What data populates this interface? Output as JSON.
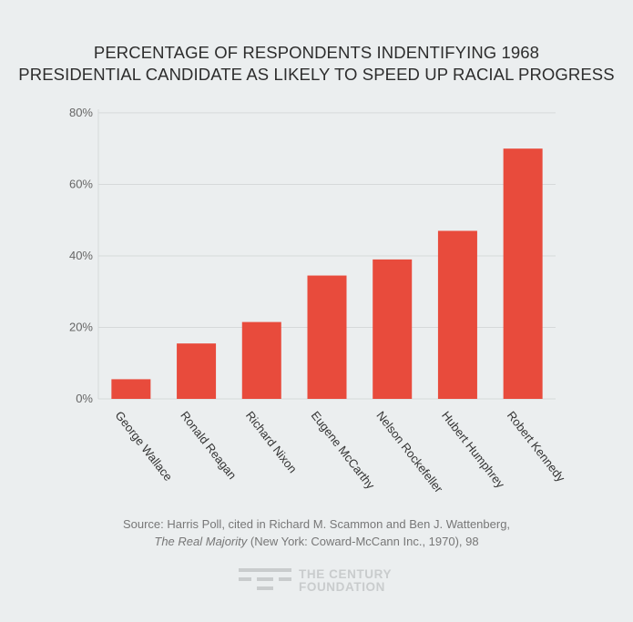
{
  "title": {
    "line1": "PERCENTAGE OF RESPONDENTS INDENTIFYING 1968",
    "line2": "PRESIDENTIAL CANDIDATE AS LIKELY TO SPEED UP RACIAL PROGRESS"
  },
  "source": {
    "line1": "Source: Harris Poll, cited in Richard M. Scammon and Ben J. Wattenberg,",
    "book_title": "The Real Majority",
    "line2_rest": " (New York: Coward-McCann Inc., 1970), 98"
  },
  "logo": {
    "line1": "THE CENTURY",
    "line2": "FOUNDATION"
  },
  "colors": {
    "bar": "#e84b3c",
    "grid": "#d6d9da",
    "tick": "#666666",
    "background": "#ebeeef"
  },
  "chart_data": {
    "type": "bar",
    "title": "PERCENTAGE OF RESPONDENTS INDENTIFYING 1968 PRESIDENTIAL CANDIDATE AS LIKELY TO SPEED UP RACIAL PROGRESS",
    "categories": [
      "George Wallace",
      "Ronald Reagan",
      "Richard Nixon",
      "Eugene McCarthy",
      "Nelson Rockefeller",
      "Hubert Humphrey",
      "Robert Kennedy"
    ],
    "values": [
      5.5,
      15.5,
      21.5,
      34.5,
      39,
      47,
      70
    ],
    "yticks": [
      0,
      20,
      40,
      60,
      80
    ],
    "ytick_labels": [
      "0%",
      "20%",
      "40%",
      "60%",
      "80%"
    ],
    "ylim": [
      0,
      81
    ],
    "xlabel": "",
    "ylabel": "",
    "grid": true
  }
}
